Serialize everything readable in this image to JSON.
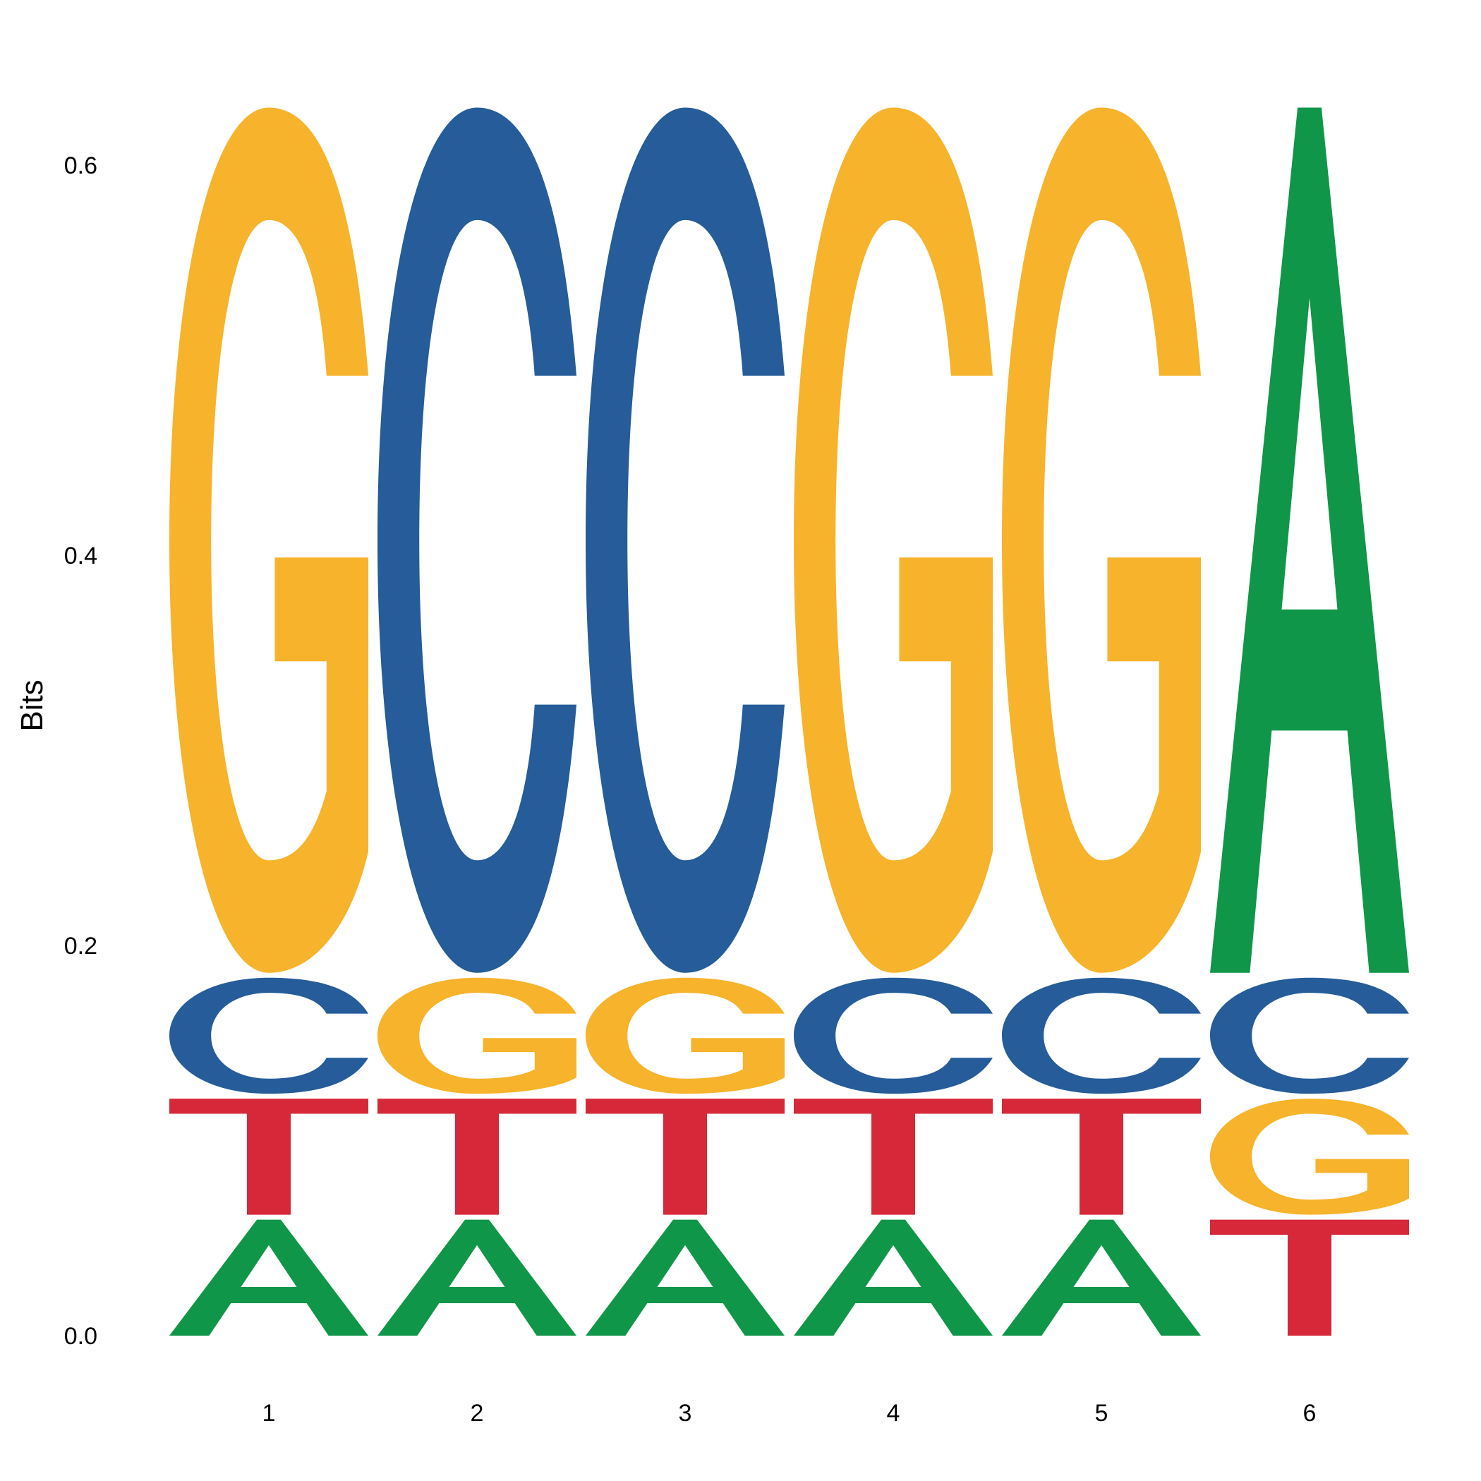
{
  "chart_data": {
    "type": "sequence-logo",
    "title": "",
    "xlabel": "",
    "ylabel": "Bits",
    "ylim": [
      0.0,
      0.68
    ],
    "yticks": [
      "0.0",
      "0.2",
      "0.4",
      "0.6"
    ],
    "ytick_values": [
      0.0,
      0.2,
      0.4,
      0.6
    ],
    "positions": [
      "1",
      "2",
      "3",
      "4",
      "5",
      "6"
    ],
    "colors": {
      "A": "#109648",
      "C": "#255C99",
      "G": "#F7B32B",
      "T": "#D62839"
    },
    "stacks": [
      [
        {
          "letter": "A",
          "bits": 0.062
        },
        {
          "letter": "T",
          "bits": 0.062
        },
        {
          "letter": "C",
          "bits": 0.062
        },
        {
          "letter": "G",
          "bits": 0.446
        }
      ],
      [
        {
          "letter": "A",
          "bits": 0.062
        },
        {
          "letter": "T",
          "bits": 0.062
        },
        {
          "letter": "G",
          "bits": 0.062
        },
        {
          "letter": "C",
          "bits": 0.446
        }
      ],
      [
        {
          "letter": "A",
          "bits": 0.062
        },
        {
          "letter": "T",
          "bits": 0.062
        },
        {
          "letter": "G",
          "bits": 0.062
        },
        {
          "letter": "C",
          "bits": 0.446
        }
      ],
      [
        {
          "letter": "A",
          "bits": 0.062
        },
        {
          "letter": "T",
          "bits": 0.062
        },
        {
          "letter": "C",
          "bits": 0.062
        },
        {
          "letter": "G",
          "bits": 0.446
        }
      ],
      [
        {
          "letter": "A",
          "bits": 0.062
        },
        {
          "letter": "T",
          "bits": 0.062
        },
        {
          "letter": "C",
          "bits": 0.062
        },
        {
          "letter": "G",
          "bits": 0.446
        }
      ],
      [
        {
          "letter": "T",
          "bits": 0.062
        },
        {
          "letter": "G",
          "bits": 0.062
        },
        {
          "letter": "C",
          "bits": 0.062
        },
        {
          "letter": "A",
          "bits": 0.446
        }
      ]
    ]
  }
}
